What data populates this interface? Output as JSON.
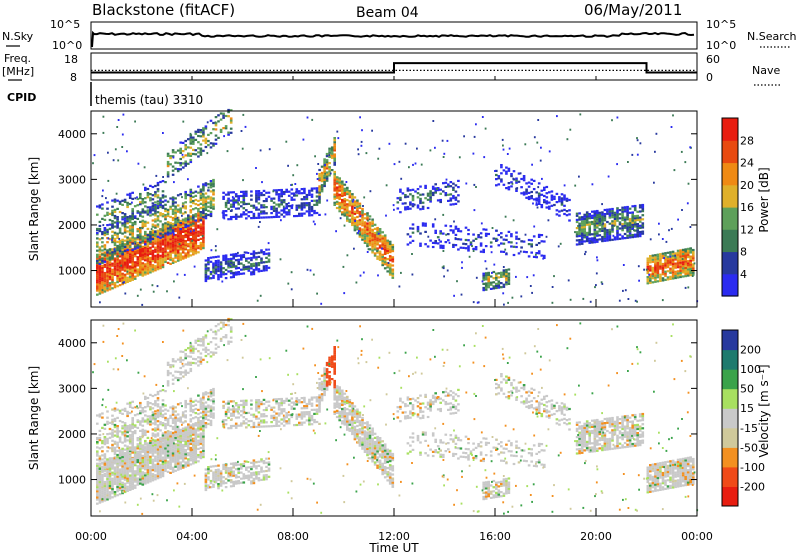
{
  "header": {
    "station": "Blackstone (fitACF)",
    "beam": "Beam 04",
    "date": "06/May/2011"
  },
  "panel_labels": {
    "nsky": "N.Sky",
    "nsearch": "N.Search",
    "freq_line1": "Freq.",
    "freq_line2": "[MHz]",
    "nave": "Nave",
    "cpid": "CPID",
    "cpid_value": "themis (tau) 3310"
  },
  "colors": {
    "power": [
      "#2b2bf0",
      "#27399e",
      "#3b7a55",
      "#5ea05a",
      "#dfb02a",
      "#ef8a14",
      "#e84a10",
      "#e81d10"
    ],
    "velocity": [
      "#e81d10",
      "#f04a18",
      "#f39020",
      "#d0c99b",
      "#c9c9c9",
      "#a8e060",
      "#3aa34a",
      "#1e7a6e",
      "#27399e"
    ]
  },
  "chart_data": [
    {
      "type": "line",
      "name": "noise",
      "left_ticks": [
        "10^5",
        "10^0"
      ],
      "right_ticks": [
        "10^5",
        "10^0"
      ],
      "x_range_hours": [
        0,
        24
      ]
    },
    {
      "type": "line",
      "name": "frequency",
      "left_ticks": [
        "18",
        "8"
      ],
      "right_ticks": [
        "60",
        "0"
      ],
      "x": [
        0,
        12,
        12,
        22,
        22,
        24
      ],
      "freq_mhz": [
        10.5,
        10.5,
        15.7,
        15.7,
        10.5,
        10.5
      ],
      "nave": [
        22,
        22,
        22,
        22,
        22,
        22
      ]
    },
    {
      "type": "heatmap",
      "name": "power",
      "ylabel": "Slant Range [km]",
      "y_ticks": [
        1000,
        2000,
        3000,
        4000
      ],
      "ylim": [
        200,
        4500
      ],
      "xlim": [
        0,
        24
      ],
      "colorbar_label": "Power [dB]",
      "colorbar_ticks": [
        "28",
        "24",
        "20",
        "16",
        "12",
        "8",
        "4"
      ],
      "clim": [
        0,
        32
      ]
    },
    {
      "type": "heatmap",
      "name": "velocity",
      "ylabel": "Slant Range [km]",
      "y_ticks": [
        1000,
        2000,
        3000,
        4000
      ],
      "ylim": [
        200,
        4500
      ],
      "xlim": [
        0,
        24
      ],
      "xlabel": "Time UT",
      "x_ticks": [
        "00:00",
        "04:00",
        "08:00",
        "12:00",
        "16:00",
        "20:00",
        "00:00"
      ],
      "colorbar_label": "Velocity [m s⁻¹]",
      "colorbar_ticks": [
        "200",
        "100",
        "50",
        "15",
        "-15",
        "-50",
        "-100",
        "-200"
      ]
    }
  ]
}
